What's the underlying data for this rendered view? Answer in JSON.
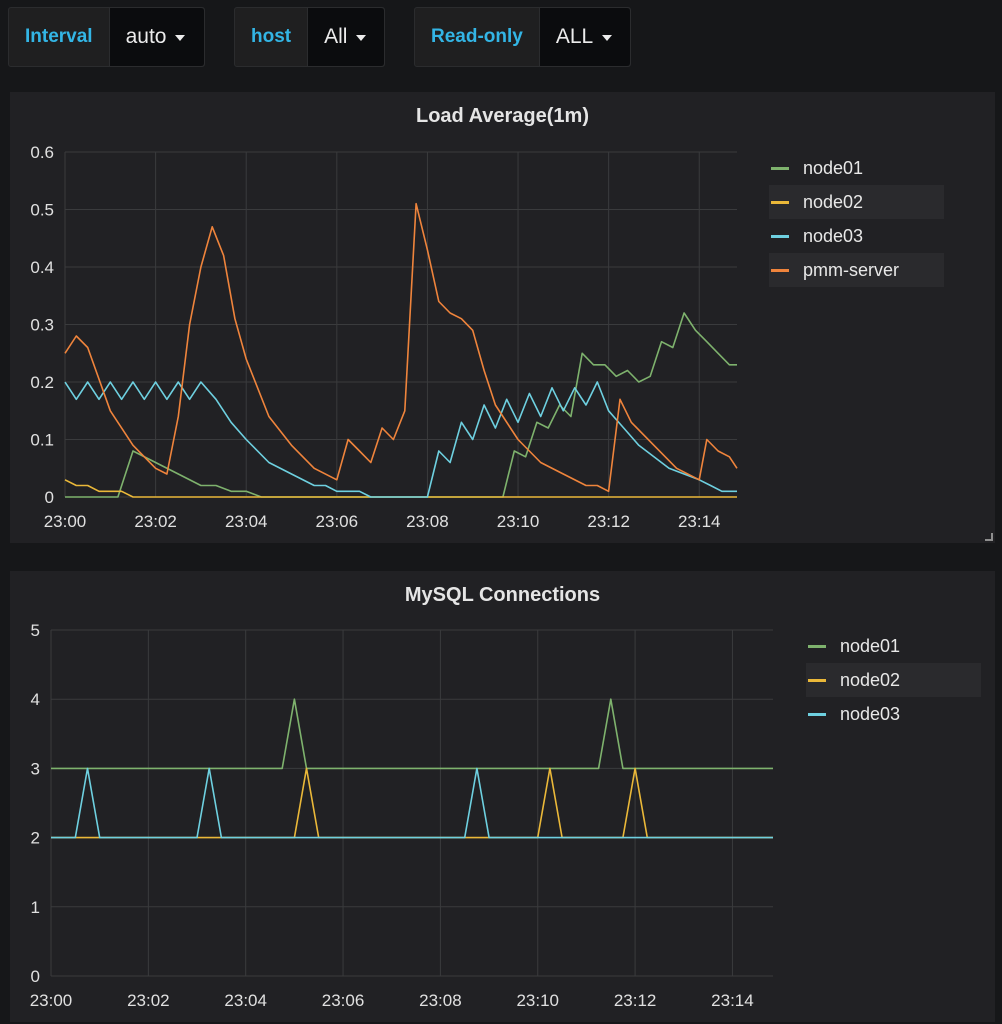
{
  "variables": [
    {
      "label": "Interval",
      "value": "auto"
    },
    {
      "label": "host",
      "value": "All"
    },
    {
      "label": "Read-only",
      "value": "ALL"
    }
  ],
  "colors": {
    "node01": "#7eb26d",
    "node02": "#eab839",
    "node03": "#6ed0e0",
    "pmm-server": "#ef843c"
  },
  "chart_data": [
    {
      "type": "line",
      "title": "Load Average(1m)",
      "xlabel": "",
      "ylabel": "",
      "ylim": [
        0,
        0.6
      ],
      "yticks": [
        "0",
        "0.1",
        "0.2",
        "0.3",
        "0.4",
        "0.5",
        "0.6"
      ],
      "xticks": [
        "23:00",
        "23:02",
        "23:04",
        "23:06",
        "23:08",
        "23:10",
        "23:12",
        "23:14"
      ],
      "xlim": [
        "23:00",
        "23:14:50"
      ],
      "grid": true,
      "legend_position": "right",
      "series": [
        {
          "name": "node01",
          "color": "#7eb26d",
          "points": [
            [
              "23:00:00",
              0
            ],
            [
              "23:01:10",
              0
            ],
            [
              "23:01:30",
              0.08
            ],
            [
              "23:02:00",
              0.06
            ],
            [
              "23:02:30",
              0.04
            ],
            [
              "23:03:00",
              0.02
            ],
            [
              "23:03:20",
              0.02
            ],
            [
              "23:03:40",
              0.01
            ],
            [
              "23:04:00",
              0.01
            ],
            [
              "23:04:10",
              0.005
            ],
            [
              "23:04:20",
              0
            ],
            [
              "23:09:40",
              0
            ],
            [
              "23:09:55",
              0.08
            ],
            [
              "23:10:10",
              0.07
            ],
            [
              "23:10:25",
              0.13
            ],
            [
              "23:10:40",
              0.12
            ],
            [
              "23:10:55",
              0.16
            ],
            [
              "23:11:10",
              0.14
            ],
            [
              "23:11:25",
              0.25
            ],
            [
              "23:11:40",
              0.23
            ],
            [
              "23:11:55",
              0.23
            ],
            [
              "23:12:10",
              0.21
            ],
            [
              "23:12:25",
              0.22
            ],
            [
              "23:12:40",
              0.2
            ],
            [
              "23:12:55",
              0.21
            ],
            [
              "23:13:10",
              0.27
            ],
            [
              "23:13:25",
              0.26
            ],
            [
              "23:13:40",
              0.32
            ],
            [
              "23:13:55",
              0.29
            ],
            [
              "23:14:10",
              0.27
            ],
            [
              "23:14:25",
              0.25
            ],
            [
              "23:14:40",
              0.23
            ],
            [
              "23:14:50",
              0.23
            ]
          ]
        },
        {
          "name": "node02",
          "color": "#eab839",
          "points": [
            [
              "23:00:00",
              0.03
            ],
            [
              "23:00:15",
              0.02
            ],
            [
              "23:00:30",
              0.02
            ],
            [
              "23:00:45",
              0.01
            ],
            [
              "23:01:00",
              0.01
            ],
            [
              "23:01:15",
              0.01
            ],
            [
              "23:01:30",
              0
            ],
            [
              "23:14:50",
              0
            ]
          ]
        },
        {
          "name": "node03",
          "color": "#6ed0e0",
          "points": [
            [
              "23:00:00",
              0.2
            ],
            [
              "23:00:15",
              0.17
            ],
            [
              "23:00:30",
              0.2
            ],
            [
              "23:00:45",
              0.17
            ],
            [
              "23:01:00",
              0.2
            ],
            [
              "23:01:15",
              0.17
            ],
            [
              "23:01:30",
              0.2
            ],
            [
              "23:01:45",
              0.17
            ],
            [
              "23:02:00",
              0.2
            ],
            [
              "23:02:15",
              0.17
            ],
            [
              "23:02:30",
              0.2
            ],
            [
              "23:02:45",
              0.17
            ],
            [
              "23:03:00",
              0.2
            ],
            [
              "23:03:20",
              0.17
            ],
            [
              "23:03:40",
              0.13
            ],
            [
              "23:04:00",
              0.1
            ],
            [
              "23:04:30",
              0.06
            ],
            [
              "23:05:00",
              0.04
            ],
            [
              "23:05:30",
              0.02
            ],
            [
              "23:05:45",
              0.02
            ],
            [
              "23:06:00",
              0.01
            ],
            [
              "23:06:30",
              0.01
            ],
            [
              "23:06:45",
              0
            ],
            [
              "23:08:00",
              0
            ],
            [
              "23:08:15",
              0.08
            ],
            [
              "23:08:30",
              0.06
            ],
            [
              "23:08:45",
              0.13
            ],
            [
              "23:09:00",
              0.1
            ],
            [
              "23:09:15",
              0.16
            ],
            [
              "23:09:30",
              0.12
            ],
            [
              "23:09:45",
              0.17
            ],
            [
              "23:10:00",
              0.13
            ],
            [
              "23:10:15",
              0.18
            ],
            [
              "23:10:30",
              0.14
            ],
            [
              "23:10:45",
              0.19
            ],
            [
              "23:11:00",
              0.15
            ],
            [
              "23:11:15",
              0.19
            ],
            [
              "23:11:30",
              0.16
            ],
            [
              "23:11:45",
              0.2
            ],
            [
              "23:12:00",
              0.15
            ],
            [
              "23:12:20",
              0.12
            ],
            [
              "23:12:40",
              0.09
            ],
            [
              "23:13:00",
              0.07
            ],
            [
              "23:13:20",
              0.05
            ],
            [
              "23:13:40",
              0.04
            ],
            [
              "23:14:00",
              0.03
            ],
            [
              "23:14:15",
              0.02
            ],
            [
              "23:14:30",
              0.01
            ],
            [
              "23:14:50",
              0.01
            ]
          ]
        },
        {
          "name": "pmm-server",
          "color": "#ef843c",
          "points": [
            [
              "23:00:00",
              0.25
            ],
            [
              "23:00:15",
              0.28
            ],
            [
              "23:00:30",
              0.26
            ],
            [
              "23:01:00",
              0.15
            ],
            [
              "23:01:30",
              0.09
            ],
            [
              "23:02:00",
              0.05
            ],
            [
              "23:02:15",
              0.04
            ],
            [
              "23:02:30",
              0.14
            ],
            [
              "23:02:45",
              0.3
            ],
            [
              "23:03:00",
              0.4
            ],
            [
              "23:03:15",
              0.47
            ],
            [
              "23:03:30",
              0.42
            ],
            [
              "23:03:45",
              0.31
            ],
            [
              "23:04:00",
              0.24
            ],
            [
              "23:04:30",
              0.14
            ],
            [
              "23:05:00",
              0.09
            ],
            [
              "23:05:30",
              0.05
            ],
            [
              "23:06:00",
              0.03
            ],
            [
              "23:06:15",
              0.1
            ],
            [
              "23:06:30",
              0.08
            ],
            [
              "23:06:45",
              0.06
            ],
            [
              "23:07:00",
              0.12
            ],
            [
              "23:07:15",
              0.1
            ],
            [
              "23:07:30",
              0.15
            ],
            [
              "23:07:45",
              0.51
            ],
            [
              "23:08:00",
              0.43
            ],
            [
              "23:08:15",
              0.34
            ],
            [
              "23:08:30",
              0.32
            ],
            [
              "23:08:45",
              0.31
            ],
            [
              "23:09:00",
              0.29
            ],
            [
              "23:09:15",
              0.22
            ],
            [
              "23:09:30",
              0.16
            ],
            [
              "23:10:00",
              0.1
            ],
            [
              "23:10:30",
              0.06
            ],
            [
              "23:11:00",
              0.04
            ],
            [
              "23:11:30",
              0.02
            ],
            [
              "23:11:45",
              0.02
            ],
            [
              "23:12:00",
              0.01
            ],
            [
              "23:12:15",
              0.17
            ],
            [
              "23:12:30",
              0.13
            ],
            [
              "23:13:00",
              0.09
            ],
            [
              "23:13:30",
              0.05
            ],
            [
              "23:14:00",
              0.03
            ],
            [
              "23:14:10",
              0.1
            ],
            [
              "23:14:25",
              0.08
            ],
            [
              "23:14:40",
              0.07
            ],
            [
              "23:14:50",
              0.05
            ]
          ]
        }
      ]
    },
    {
      "type": "line",
      "title": "MySQL Connections",
      "xlabel": "",
      "ylabel": "",
      "ylim": [
        0,
        5
      ],
      "yticks": [
        "0",
        "1",
        "2",
        "3",
        "4",
        "5"
      ],
      "xticks": [
        "23:00",
        "23:02",
        "23:04",
        "23:06",
        "23:08",
        "23:10",
        "23:12",
        "23:14"
      ],
      "xlim": [
        "23:00",
        "23:14:50"
      ],
      "grid": true,
      "legend_position": "right",
      "series": [
        {
          "name": "node01",
          "color": "#7eb26d",
          "points": [
            [
              "23:00:00",
              3
            ],
            [
              "23:04:45",
              3
            ],
            [
              "23:05:00",
              4
            ],
            [
              "23:05:15",
              3
            ],
            [
              "23:11:15",
              3
            ],
            [
              "23:11:30",
              4
            ],
            [
              "23:11:45",
              3
            ],
            [
              "23:14:50",
              3
            ]
          ]
        },
        {
          "name": "node02",
          "color": "#eab839",
          "points": [
            [
              "23:00:00",
              2
            ],
            [
              "23:05:00",
              2
            ],
            [
              "23:05:15",
              3
            ],
            [
              "23:05:30",
              2
            ],
            [
              "23:10:00",
              2
            ],
            [
              "23:10:15",
              3
            ],
            [
              "23:10:30",
              2
            ],
            [
              "23:11:45",
              2
            ],
            [
              "23:12:00",
              3
            ],
            [
              "23:12:15",
              2
            ],
            [
              "23:14:50",
              2
            ]
          ]
        },
        {
          "name": "node03",
          "color": "#6ed0e0",
          "points": [
            [
              "23:00:00",
              2
            ],
            [
              "23:00:30",
              2
            ],
            [
              "23:00:45",
              3
            ],
            [
              "23:01:00",
              2
            ],
            [
              "23:03:00",
              2
            ],
            [
              "23:03:15",
              3
            ],
            [
              "23:03:30",
              2
            ],
            [
              "23:08:30",
              2
            ],
            [
              "23:08:45",
              3
            ],
            [
              "23:09:00",
              2
            ],
            [
              "23:14:50",
              2
            ]
          ]
        }
      ]
    }
  ]
}
